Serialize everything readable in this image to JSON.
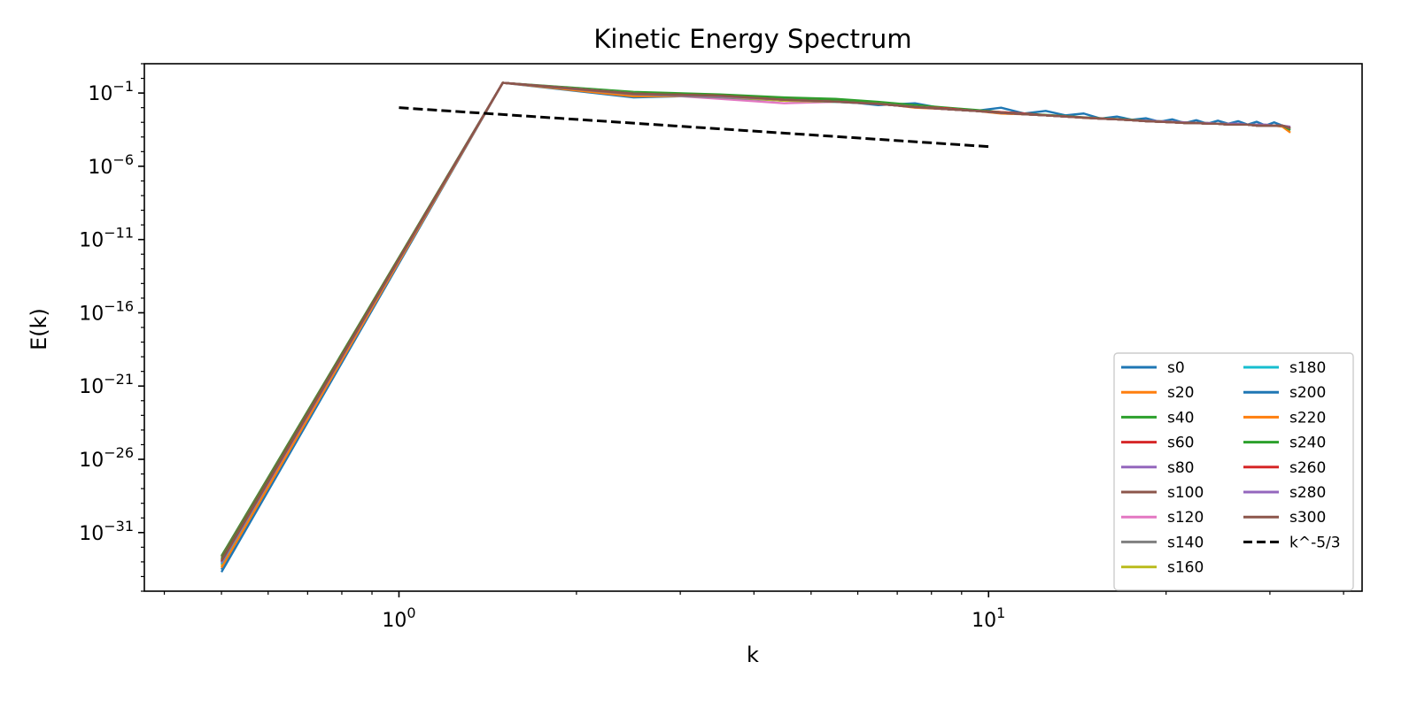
{
  "chart_data": {
    "type": "line",
    "title": "Kinetic Energy Spectrum",
    "xlabel": "k",
    "ylabel": "E(k)",
    "xscale": "log",
    "yscale": "log",
    "xlim": [
      0.37,
      43
    ],
    "ylim": [
      1e-35,
      10.0
    ],
    "xticks": [
      {
        "value": 1,
        "base": "10",
        "exp": "0"
      },
      {
        "value": 10,
        "base": "10",
        "exp": "1"
      }
    ],
    "yticks": [
      {
        "value": 0.1,
        "base": "10",
        "exp": "−1"
      },
      {
        "value": 1e-06,
        "base": "10",
        "exp": "−6"
      },
      {
        "value": 1e-11,
        "base": "10",
        "exp": "−11"
      },
      {
        "value": 1e-16,
        "base": "10",
        "exp": "−16"
      },
      {
        "value": 1e-21,
        "base": "10",
        "exp": "−21"
      },
      {
        "value": 1e-26,
        "base": "10",
        "exp": "−26"
      },
      {
        "value": 1e-31,
        "base": "10",
        "exp": "−31"
      }
    ],
    "grid": false,
    "legend_position": "lower-right",
    "legend_columns": 2,
    "x": [
      0.5,
      1.5,
      2.5,
      3.5,
      4.5,
      5.5,
      6.5,
      7.5,
      8.5,
      9.5,
      10.5,
      11.5,
      12.5,
      13.5,
      14.5,
      15.5,
      16.5,
      17.5,
      18.5,
      19.5,
      20.5,
      21.5,
      22.5,
      23.5,
      24.5,
      25.5,
      26.5,
      27.5,
      28.5,
      29.5,
      30.5,
      31.5,
      32.5
    ],
    "series": [
      {
        "name": "s0",
        "color": "#1f77b4",
        "values": [
          2e-34,
          0.5,
          0.05,
          0.07,
          0.03,
          0.03,
          0.015,
          0.02,
          0.008,
          0.006,
          0.01,
          0.004,
          0.006,
          0.003,
          0.004,
          0.0018,
          0.0025,
          0.0015,
          0.0019,
          0.0011,
          0.0016,
          0.0009,
          0.0014,
          0.0008,
          0.0013,
          0.0008,
          0.0012,
          0.0007,
          0.0011,
          0.0006,
          0.001,
          0.0006,
          0.0003
        ]
      },
      {
        "name": "s20",
        "color": "#ff7f0e",
        "values": [
          6e-34,
          0.5,
          0.06,
          0.06,
          0.03,
          0.03,
          0.02,
          0.01,
          0.008,
          0.006,
          0.004,
          0.0035,
          0.003,
          0.0025,
          0.002,
          0.0018,
          0.0016,
          0.0014,
          0.0012,
          0.0011,
          0.001,
          0.0009,
          0.0009,
          0.0008,
          0.0008,
          0.0007,
          0.0007,
          0.0007,
          0.0006,
          0.0006,
          0.0006,
          0.0005,
          0.0002
        ]
      },
      {
        "name": "s40",
        "color": "#2ca02c",
        "values": [
          2.5e-33,
          0.5,
          0.12,
          0.08,
          0.05,
          0.04,
          0.025,
          0.015,
          0.01,
          0.007,
          0.005,
          0.004,
          0.0032,
          0.0027,
          0.0022,
          0.0019,
          0.0017,
          0.0015,
          0.0013,
          0.0012,
          0.0011,
          0.001,
          0.0009,
          0.0009,
          0.0008,
          0.0008,
          0.0007,
          0.0007,
          0.0007,
          0.0006,
          0.0006,
          0.0006,
          0.0003
        ]
      },
      {
        "name": "s60",
        "color": "#d62728",
        "values": [
          1e-33,
          0.5,
          0.1,
          0.07,
          0.04,
          0.03,
          0.02,
          0.012,
          0.009,
          0.006,
          0.005,
          0.004,
          0.003,
          0.0025,
          0.0021,
          0.0018,
          0.0016,
          0.0014,
          0.0012,
          0.0011,
          0.001,
          0.0009,
          0.0009,
          0.0008,
          0.0008,
          0.0007,
          0.0007,
          0.0007,
          0.0006,
          0.0006,
          0.0006,
          0.0006,
          0.0004
        ]
      },
      {
        "name": "s80",
        "color": "#9467bd",
        "values": [
          1.5e-33,
          0.5,
          0.09,
          0.06,
          0.035,
          0.025,
          0.018,
          0.011,
          0.008,
          0.006,
          0.0045,
          0.0037,
          0.003,
          0.0025,
          0.0021,
          0.0018,
          0.0016,
          0.0014,
          0.0013,
          0.0012,
          0.0011,
          0.001,
          0.0009,
          0.0009,
          0.0008,
          0.0008,
          0.0008,
          0.0007,
          0.0007,
          0.0007,
          0.0006,
          0.0006,
          0.0005
        ]
      },
      {
        "name": "s100",
        "color": "#8c564b",
        "values": [
          2e-33,
          0.5,
          0.09,
          0.065,
          0.04,
          0.03,
          0.02,
          0.012,
          0.008,
          0.006,
          0.0045,
          0.0036,
          0.003,
          0.0025,
          0.0021,
          0.0018,
          0.0016,
          0.0014,
          0.0012,
          0.0011,
          0.001,
          0.0009,
          0.0009,
          0.0008,
          0.0008,
          0.0007,
          0.0007,
          0.0007,
          0.0006,
          0.0006,
          0.0006,
          0.0006,
          0.0004
        ]
      },
      {
        "name": "s120",
        "color": "#e377c2",
        "values": [
          8e-34,
          0.5,
          0.1,
          0.04,
          0.02,
          0.025,
          0.02,
          0.012,
          0.008,
          0.006,
          0.0045,
          0.0036,
          0.003,
          0.0025,
          0.0021,
          0.0018,
          0.0016,
          0.0014,
          0.0012,
          0.0011,
          0.001,
          0.0009,
          0.0009,
          0.0008,
          0.0008,
          0.0007,
          0.0007,
          0.0007,
          0.0006,
          0.0006,
          0.0006,
          0.0006,
          0.0004
        ]
      },
      {
        "name": "s140",
        "color": "#7f7f7f",
        "values": [
          1e-33,
          0.5,
          0.08,
          0.05,
          0.03,
          0.025,
          0.018,
          0.011,
          0.008,
          0.006,
          0.0045,
          0.0036,
          0.003,
          0.0025,
          0.0021,
          0.0018,
          0.0016,
          0.0014,
          0.0012,
          0.0011,
          0.001,
          0.0009,
          0.0009,
          0.0008,
          0.0008,
          0.0007,
          0.0007,
          0.0007,
          0.0006,
          0.0006,
          0.0006,
          0.0006,
          0.0004
        ]
      },
      {
        "name": "s160",
        "color": "#bcbd22",
        "values": [
          5e-34,
          0.5,
          0.09,
          0.06,
          0.03,
          0.025,
          0.018,
          0.011,
          0.008,
          0.006,
          0.0045,
          0.0036,
          0.003,
          0.0025,
          0.0021,
          0.0018,
          0.0016,
          0.0014,
          0.0012,
          0.0011,
          0.001,
          0.0009,
          0.0009,
          0.0008,
          0.0008,
          0.0007,
          0.0007,
          0.0007,
          0.0006,
          0.0006,
          0.0006,
          0.0006,
          0.0004
        ]
      },
      {
        "name": "s180",
        "color": "#17becf",
        "values": [
          7e-34,
          0.5,
          0.09,
          0.06,
          0.035,
          0.025,
          0.018,
          0.011,
          0.008,
          0.006,
          0.0045,
          0.0036,
          0.003,
          0.0025,
          0.0021,
          0.0018,
          0.0016,
          0.0014,
          0.0012,
          0.0011,
          0.001,
          0.0009,
          0.0009,
          0.0008,
          0.0008,
          0.0007,
          0.0007,
          0.0007,
          0.0006,
          0.0006,
          0.0006,
          0.0006,
          0.0004
        ]
      },
      {
        "name": "s200",
        "color": "#1f77b4",
        "values": [
          3e-34,
          0.5,
          0.09,
          0.065,
          0.035,
          0.026,
          0.018,
          0.011,
          0.008,
          0.006,
          0.0045,
          0.0036,
          0.003,
          0.0025,
          0.0021,
          0.0018,
          0.0016,
          0.0014,
          0.0012,
          0.0011,
          0.001,
          0.0009,
          0.0009,
          0.0008,
          0.0008,
          0.0007,
          0.0007,
          0.0007,
          0.0006,
          0.0006,
          0.0006,
          0.0006,
          0.0004
        ]
      },
      {
        "name": "s220",
        "color": "#ff7f0e",
        "values": [
          4e-34,
          0.5,
          0.09,
          0.06,
          0.035,
          0.026,
          0.02,
          0.011,
          0.008,
          0.006,
          0.0045,
          0.0036,
          0.003,
          0.0025,
          0.0021,
          0.0018,
          0.0016,
          0.0014,
          0.0012,
          0.0011,
          0.001,
          0.0009,
          0.0009,
          0.0008,
          0.0008,
          0.0007,
          0.0007,
          0.0007,
          0.0006,
          0.0006,
          0.0006,
          0.0006,
          0.0004
        ]
      },
      {
        "name": "s240",
        "color": "#2ca02c",
        "values": [
          1.5e-33,
          0.5,
          0.1,
          0.07,
          0.04,
          0.03,
          0.02,
          0.012,
          0.008,
          0.006,
          0.0045,
          0.0036,
          0.003,
          0.0025,
          0.0021,
          0.0018,
          0.0016,
          0.0014,
          0.0012,
          0.0011,
          0.001,
          0.0009,
          0.0009,
          0.0008,
          0.0008,
          0.0007,
          0.0007,
          0.0007,
          0.0006,
          0.0006,
          0.0006,
          0.0006,
          0.0004
        ]
      },
      {
        "name": "s260",
        "color": "#d62728",
        "values": [
          1.2e-33,
          0.5,
          0.09,
          0.065,
          0.035,
          0.026,
          0.018,
          0.011,
          0.008,
          0.006,
          0.0045,
          0.0036,
          0.003,
          0.0025,
          0.0021,
          0.0018,
          0.0016,
          0.0014,
          0.0012,
          0.0011,
          0.001,
          0.0009,
          0.0009,
          0.0008,
          0.0008,
          0.0007,
          0.0007,
          0.0007,
          0.0006,
          0.0006,
          0.0006,
          0.0006,
          0.0004
        ]
      },
      {
        "name": "s280",
        "color": "#9467bd",
        "values": [
          9e-34,
          0.5,
          0.09,
          0.06,
          0.035,
          0.026,
          0.018,
          0.011,
          0.008,
          0.006,
          0.0045,
          0.0036,
          0.003,
          0.0025,
          0.0021,
          0.0018,
          0.0016,
          0.0014,
          0.0012,
          0.0011,
          0.001,
          0.0009,
          0.0009,
          0.0008,
          0.0008,
          0.0007,
          0.0007,
          0.0007,
          0.0006,
          0.0006,
          0.0006,
          0.0006,
          0.0004
        ]
      },
      {
        "name": "s300",
        "color": "#8c564b",
        "values": [
          1.1e-33,
          0.5,
          0.09,
          0.065,
          0.035,
          0.026,
          0.018,
          0.011,
          0.008,
          0.006,
          0.0045,
          0.0036,
          0.003,
          0.0025,
          0.0021,
          0.0018,
          0.0016,
          0.0014,
          0.0012,
          0.0011,
          0.001,
          0.0009,
          0.0009,
          0.0008,
          0.0008,
          0.0007,
          0.0007,
          0.0007,
          0.0006,
          0.0006,
          0.0006,
          0.0006,
          0.0004
        ]
      }
    ],
    "reference_line": {
      "name": "k^-5/3",
      "color": "#000000",
      "style": "dashed",
      "x": [
        1,
        10
      ],
      "values": [
        0.01,
        2.2e-05
      ]
    }
  }
}
